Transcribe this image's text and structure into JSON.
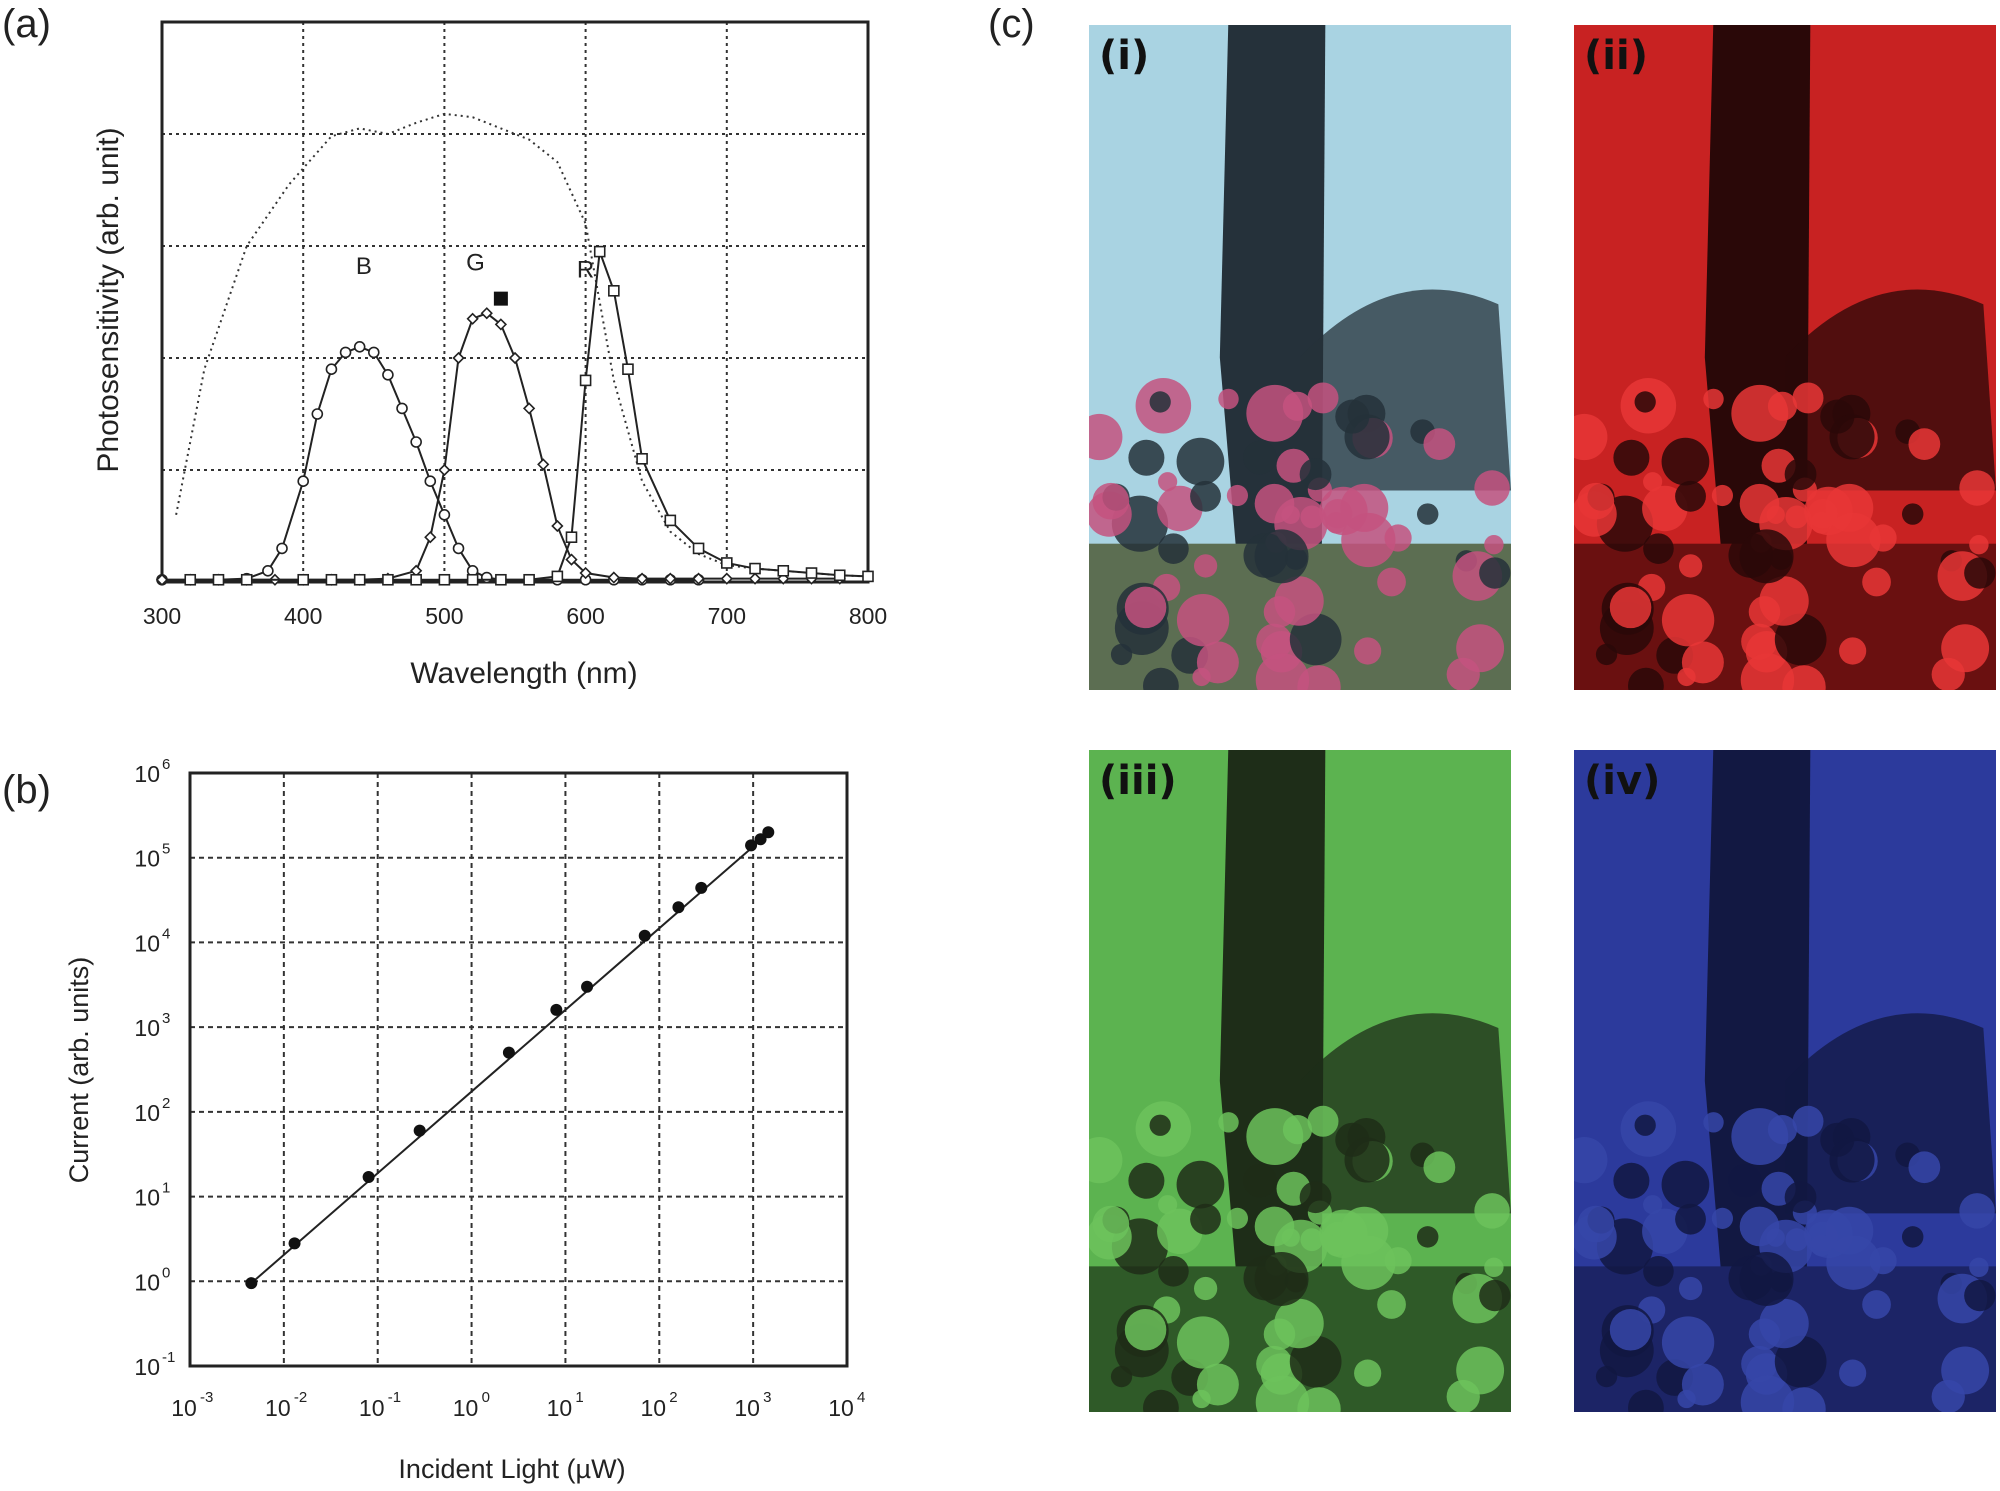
{
  "panels": {
    "a": "(a)",
    "b": "(b)",
    "c": "(c)"
  },
  "photos": [
    {
      "label": "(i)",
      "sky": "#a9d3e2",
      "trunk": "#25313a",
      "flower": "#c4527f",
      "ground": "#5c6e52"
    },
    {
      "label": "(ii)",
      "sky": "#c82222",
      "trunk": "#2a0808",
      "flower": "#e83636",
      "ground": "#6a1010"
    },
    {
      "label": "(iii)",
      "sky": "#5cb350",
      "trunk": "#1e2d18",
      "flower": "#6cc25c",
      "ground": "#2f5a28"
    },
    {
      "label": "(iv)",
      "sky": "#2c3a9c",
      "trunk": "#121842",
      "flower": "#3646a8",
      "ground": "#1c2466"
    }
  ],
  "chart_data": [
    {
      "type": "line",
      "panel": "(a)",
      "xlabel": "Wavelength (nm)",
      "ylabel": "Photosensitivity (arb. unit)",
      "xlim": [
        300,
        800
      ],
      "ylim": [
        0,
        5
      ],
      "xticks": [
        "300",
        "400",
        "500",
        "600",
        "700",
        "800"
      ],
      "grid": true,
      "annotations": [
        {
          "text": "B",
          "x": 443,
          "y": 2.75
        },
        {
          "text": "G",
          "x": 522,
          "y": 2.78
        },
        {
          "text": "R",
          "x": 600,
          "y": 2.72
        }
      ],
      "series": [
        {
          "style": "dotted",
          "x": [
            310,
            330,
            360,
            390,
            420,
            440,
            460,
            480,
            500,
            520,
            540,
            560,
            580,
            600,
            610,
            620,
            640,
            660,
            680,
            700,
            720,
            740,
            760,
            780,
            800
          ],
          "y": [
            0.6,
            1.9,
            3.0,
            3.55,
            3.98,
            4.05,
            4.0,
            4.1,
            4.18,
            4.15,
            4.05,
            3.95,
            3.75,
            3.2,
            2.5,
            1.8,
            0.9,
            0.45,
            0.25,
            0.15,
            0.12,
            0.1,
            0.08,
            0.06,
            0.05
          ]
        },
        {
          "marker": "circle",
          "x": [
            300,
            320,
            340,
            360,
            375,
            385,
            400,
            410,
            420,
            430,
            440,
            450,
            460,
            470,
            480,
            490,
            500,
            510,
            520,
            530,
            540,
            560,
            580,
            600,
            620,
            640,
            660,
            680
          ],
          "y": [
            0.02,
            0.02,
            0.02,
            0.03,
            0.1,
            0.3,
            0.9,
            1.5,
            1.9,
            2.05,
            2.1,
            2.05,
            1.85,
            1.55,
            1.25,
            0.9,
            0.6,
            0.3,
            0.1,
            0.04,
            0.02,
            0.02,
            0.02,
            0.02,
            0.02,
            0.02,
            0.02,
            0.02
          ]
        },
        {
          "marker": "diamond",
          "x": [
            300,
            320,
            340,
            360,
            380,
            400,
            420,
            440,
            460,
            480,
            490,
            500,
            510,
            520,
            530,
            540,
            550,
            560,
            570,
            580,
            590,
            600,
            620,
            640,
            660,
            680,
            700,
            720,
            740,
            760,
            780
          ],
          "y": [
            0.02,
            0.02,
            0.02,
            0.02,
            0.02,
            0.02,
            0.02,
            0.02,
            0.03,
            0.1,
            0.4,
            1.0,
            2.0,
            2.35,
            2.4,
            2.3,
            2.0,
            1.55,
            1.05,
            0.5,
            0.2,
            0.08,
            0.04,
            0.03,
            0.03,
            0.03,
            0.03,
            0.03,
            0.03,
            0.03,
            0.03
          ]
        },
        {
          "marker": "square",
          "x": [
            320,
            340,
            360,
            400,
            420,
            440,
            460,
            480,
            500,
            520,
            540,
            560,
            580,
            590,
            600,
            610,
            620,
            630,
            640,
            660,
            680,
            700,
            720,
            740,
            760,
            780,
            800
          ],
          "y": [
            0.02,
            0.02,
            0.02,
            0.02,
            0.02,
            0.02,
            0.02,
            0.02,
            0.02,
            0.02,
            0.02,
            0.02,
            0.05,
            0.4,
            1.8,
            2.95,
            2.6,
            1.9,
            1.1,
            0.55,
            0.3,
            0.17,
            0.12,
            0.1,
            0.08,
            0.06,
            0.05
          ]
        },
        {
          "marker": "filled-square",
          "x": [
            540
          ],
          "y": [
            2.53
          ]
        }
      ]
    },
    {
      "type": "scatter",
      "panel": "(b)",
      "xlabel": "Incident Light (µW)",
      "ylabel": "Current (arb. units)",
      "xscale": "log",
      "yscale": "log",
      "xlim": [
        0.001,
        10000
      ],
      "ylim": [
        0.1,
        1000000
      ],
      "xtick_exponents": [
        "-3",
        "-2",
        "-1",
        "0",
        "1",
        "2",
        "3",
        "4"
      ],
      "ytick_exponents": [
        "-1",
        "0",
        "1",
        "2",
        "3",
        "4",
        "5",
        "6"
      ],
      "grid": true,
      "fit_line": {
        "x": [
          0.0045,
          1500
        ],
        "y": [
          0.95,
          200000
        ]
      },
      "points": {
        "x": [
          0.0045,
          0.013,
          0.08,
          0.28,
          2.5,
          8,
          17,
          70,
          160,
          280,
          950,
          1200,
          1450
        ],
        "y": [
          0.95,
          2.8,
          17,
          60,
          500,
          1600,
          3000,
          12000,
          26000,
          44000,
          140000,
          165000,
          200000
        ]
      }
    }
  ]
}
